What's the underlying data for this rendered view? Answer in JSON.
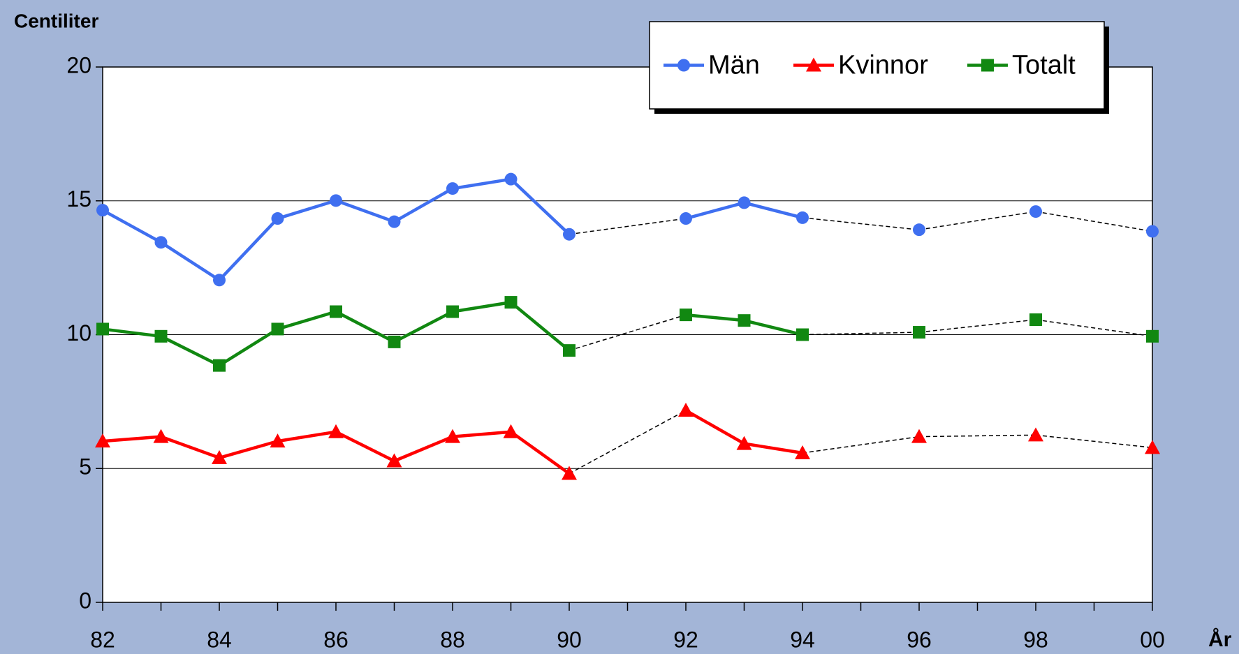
{
  "chart_data": {
    "type": "line",
    "y_label": "Centiliter",
    "x_label": "År",
    "categories": [
      "82",
      null,
      "84",
      null,
      "86",
      null,
      "88",
      null,
      "90",
      null,
      "92",
      null,
      "94",
      null,
      "96",
      null,
      "98",
      null,
      "00"
    ],
    "series": [
      {
        "name": "Män",
        "color": "#3f6ff0",
        "marker": "circle",
        "values": [
          14.65,
          13.45,
          12.04,
          14.34,
          15.01,
          14.22,
          15.46,
          15.81,
          13.75,
          null,
          14.34,
          14.93,
          14.37,
          null,
          13.92,
          null,
          14.6,
          null,
          13.86
        ]
      },
      {
        "name": "Kvinnor",
        "color": "#ff0000",
        "marker": "triangle",
        "values": [
          6.02,
          6.19,
          5.4,
          6.02,
          6.37,
          5.28,
          6.19,
          6.37,
          4.81,
          null,
          7.17,
          5.93,
          5.58,
          null,
          6.19,
          null,
          6.25,
          null,
          5.78
        ]
      },
      {
        "name": "Totalt",
        "color": "#118811",
        "marker": "square",
        "values": [
          10.21,
          9.94,
          8.85,
          10.21,
          10.86,
          9.73,
          10.86,
          11.21,
          9.41,
          null,
          10.74,
          10.53,
          10.0,
          null,
          10.09,
          null,
          10.56,
          null,
          9.94
        ]
      }
    ],
    "ylim": [
      0,
      20
    ],
    "yticks": [
      0,
      5,
      10,
      15,
      20
    ],
    "grid": true,
    "legend": "top-right"
  }
}
